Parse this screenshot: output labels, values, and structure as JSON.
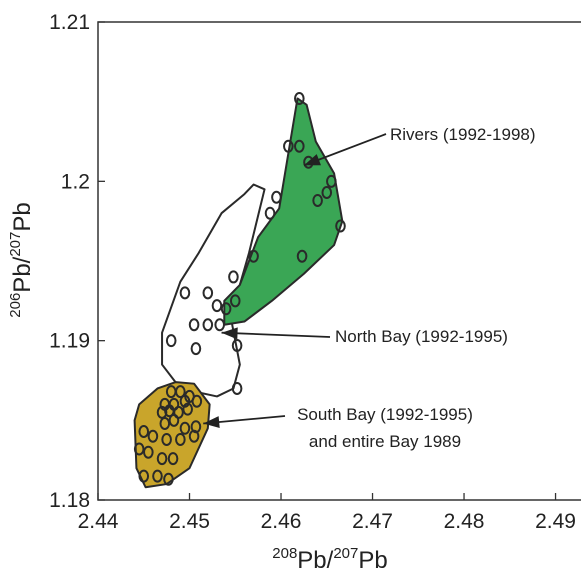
{
  "chart_data": {
    "type": "scatter",
    "title": "",
    "xlabel": {
      "sup": "208",
      "base1": "Pb/",
      "sup2": "207",
      "base2": "Pb"
    },
    "ylabel": {
      "sup": "206",
      "base1": "Pb/",
      "sup2": "207",
      "base2": "Pb"
    },
    "xlim": [
      2.44,
      2.493
    ],
    "ylim": [
      1.18,
      1.21
    ],
    "x_ticks": [
      "2.44",
      "2.45",
      "2.46",
      "2.47",
      "2.48",
      "2.49"
    ],
    "y_ticks": [
      "1.18",
      "1.19",
      "1.2",
      "1.21"
    ],
    "grid": false,
    "regions": [
      {
        "name": "Rivers (1992-1998)",
        "color": "#3aa655",
        "polygon": [
          [
            2.4538,
            1.1925
          ],
          [
            2.4555,
            1.1935
          ],
          [
            2.4575,
            1.1965
          ],
          [
            2.4598,
            1.1983
          ],
          [
            2.4618,
            1.2052
          ],
          [
            2.4628,
            1.2048
          ],
          [
            2.4638,
            1.2025
          ],
          [
            2.4658,
            1.2005
          ],
          [
            2.4667,
            1.1975
          ],
          [
            2.4658,
            1.196
          ],
          [
            2.4625,
            1.1942
          ],
          [
            2.459,
            1.1925
          ],
          [
            2.456,
            1.1912
          ],
          [
            2.4538,
            1.191
          ]
        ],
        "points": [
          [
            2.462,
            1.2052
          ],
          [
            2.4608,
            1.2022
          ],
          [
            2.462,
            1.2022
          ],
          [
            2.463,
            1.2012
          ],
          [
            2.4655,
            1.2
          ],
          [
            2.465,
            1.1993
          ],
          [
            2.464,
            1.1988
          ],
          [
            2.4595,
            1.199
          ],
          [
            2.4588,
            1.198
          ],
          [
            2.4665,
            1.1972
          ],
          [
            2.4623,
            1.1953
          ],
          [
            2.4548,
            1.194
          ],
          [
            2.457,
            1.1953
          ],
          [
            2.455,
            1.1925
          ],
          [
            2.454,
            1.192
          ]
        ],
        "arrow_tip": [
          2.4625,
          1.201
        ]
      },
      {
        "name": "North Bay (1992-1995)",
        "color": "none",
        "polygon": [
          [
            2.447,
            1.1885
          ],
          [
            2.447,
            1.1905
          ],
          [
            2.449,
            1.1937
          ],
          [
            2.451,
            1.1955
          ],
          [
            2.4535,
            1.198
          ],
          [
            2.456,
            1.1992
          ],
          [
            2.457,
            1.1998
          ],
          [
            2.4582,
            1.1995
          ],
          [
            2.4565,
            1.1955
          ],
          [
            2.4555,
            1.1935
          ],
          [
            2.4545,
            1.1915
          ],
          [
            2.455,
            1.19
          ],
          [
            2.4555,
            1.1885
          ],
          [
            2.4548,
            1.187
          ],
          [
            2.453,
            1.1865
          ],
          [
            2.449,
            1.187
          ]
        ],
        "points": [
          [
            2.448,
            1.19
          ],
          [
            2.4495,
            1.193
          ],
          [
            2.452,
            1.193
          ],
          [
            2.453,
            1.1922
          ],
          [
            2.4505,
            1.191
          ],
          [
            2.452,
            1.191
          ],
          [
            2.4533,
            1.191
          ],
          [
            2.4507,
            1.1895
          ],
          [
            2.4552,
            1.1897
          ],
          [
            2.4552,
            1.187
          ]
        ],
        "arrow_tip": [
          2.4535,
          1.1905
        ]
      },
      {
        "name": "South Bay (1992-1995)",
        "name_line2": "and entire Bay 1989",
        "color": "#c9a52b",
        "polygon": [
          [
            2.444,
            1.185
          ],
          [
            2.4445,
            1.186
          ],
          [
            2.4465,
            1.187
          ],
          [
            2.4485,
            1.1874
          ],
          [
            2.4505,
            1.1873
          ],
          [
            2.4522,
            1.186
          ],
          [
            2.452,
            1.1845
          ],
          [
            2.45,
            1.182
          ],
          [
            2.4475,
            1.181
          ],
          [
            2.4452,
            1.1808
          ],
          [
            2.4442,
            1.182
          ]
        ],
        "points": [
          [
            2.448,
            1.1868
          ],
          [
            2.449,
            1.1868
          ],
          [
            2.45,
            1.1865
          ],
          [
            2.4473,
            1.186
          ],
          [
            2.4483,
            1.186
          ],
          [
            2.4495,
            1.1862
          ],
          [
            2.4508,
            1.1862
          ],
          [
            2.447,
            1.1855
          ],
          [
            2.4478,
            1.1856
          ],
          [
            2.4488,
            1.1855
          ],
          [
            2.4498,
            1.1857
          ],
          [
            2.4473,
            1.1848
          ],
          [
            2.4483,
            1.185
          ],
          [
            2.4495,
            1.1845
          ],
          [
            2.4507,
            1.1846
          ],
          [
            2.445,
            1.1843
          ],
          [
            2.446,
            1.184
          ],
          [
            2.4475,
            1.1838
          ],
          [
            2.449,
            1.1838
          ],
          [
            2.4505,
            1.184
          ],
          [
            2.4445,
            1.1832
          ],
          [
            2.4455,
            1.183
          ],
          [
            2.447,
            1.1826
          ],
          [
            2.4482,
            1.1826
          ],
          [
            2.445,
            1.1815
          ],
          [
            2.4465,
            1.1815
          ],
          [
            2.4477,
            1.1813
          ]
        ],
        "arrow_tip": [
          2.4515,
          1.1848
        ]
      }
    ]
  }
}
